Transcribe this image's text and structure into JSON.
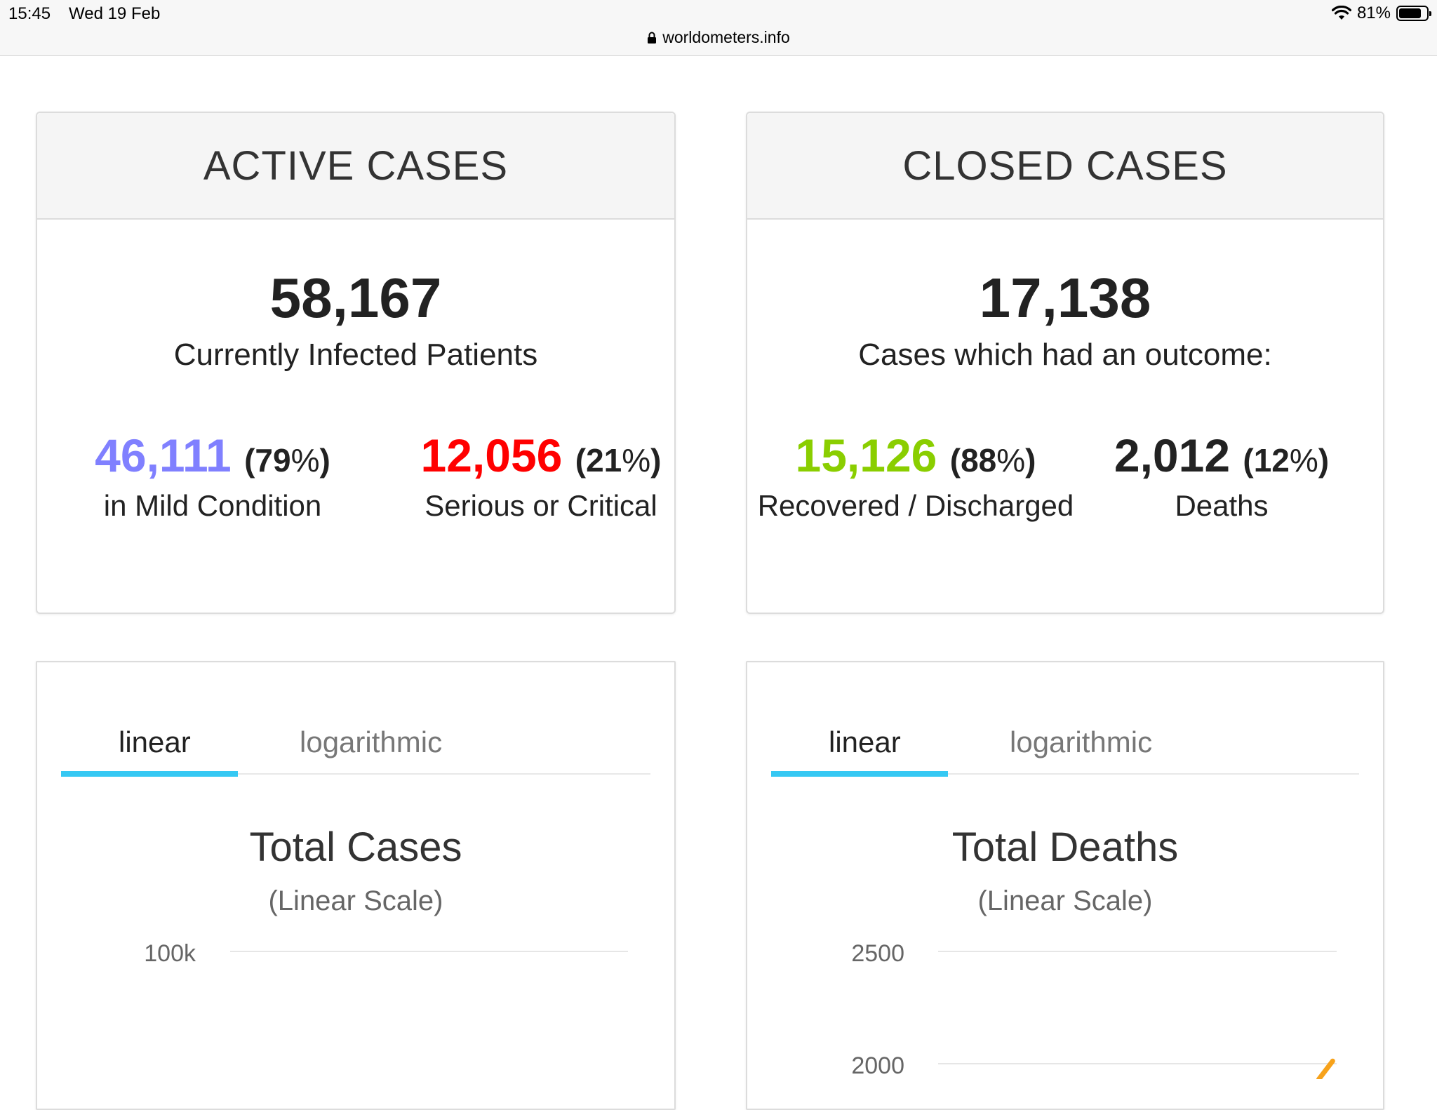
{
  "status_bar": {
    "time": "15:45",
    "date": "Wed 19 Feb",
    "battery": "81%",
    "battery_level": 0.81,
    "url": "worldometers.info"
  },
  "active_cases": {
    "title": "ACTIVE CASES",
    "total": "58,167",
    "subtitle": "Currently Infected Patients",
    "mild": {
      "value": "46,111",
      "pct": "79",
      "label": "in Mild Condition",
      "color": "#8080ff"
    },
    "serious": {
      "value": "12,056",
      "pct": "21",
      "label": "Serious or Critical",
      "color": "#ff0000"
    }
  },
  "closed_cases": {
    "title": "CLOSED CASES",
    "total": "17,138",
    "subtitle": "Cases which had an outcome:",
    "recovered": {
      "value": "15,126",
      "pct": "88",
      "label": "Recovered / Discharged",
      "color": "#8ace00"
    },
    "deaths": {
      "value": "2,012",
      "pct": "12",
      "label": "Deaths",
      "color": "#222222"
    }
  },
  "cases_chart": {
    "tabs": [
      "linear",
      "logarithmic"
    ],
    "title": "Total Cases",
    "subtitle": "(Linear Scale)"
  },
  "deaths_chart": {
    "tabs": [
      "linear",
      "logarithmic"
    ],
    "title": "Total Deaths",
    "subtitle": "(Linear Scale)"
  },
  "chart_data": [
    {
      "type": "line",
      "title": "Total Cases",
      "subtitle": "(Linear Scale)",
      "y_ticks": [
        "100k"
      ],
      "y_tick_values": [
        100000
      ]
    },
    {
      "type": "line",
      "title": "Total Deaths",
      "subtitle": "(Linear Scale)",
      "y_ticks": [
        "2500",
        "2000"
      ],
      "y_tick_values": [
        2500,
        2000
      ],
      "series": [
        {
          "color": "#f7a21b",
          "x_fraction": [
            0.955,
            0.99
          ],
          "values": [
            1930,
            2012
          ]
        }
      ]
    }
  ]
}
